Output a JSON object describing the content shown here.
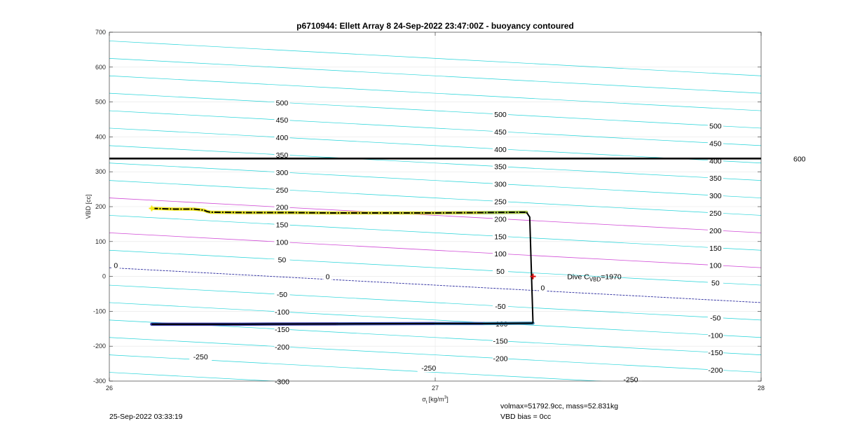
{
  "chart_data": {
    "type": "line",
    "title": "p6710944: Ellett Array 8 24-Sep-2022 23:47:00Z - buoyancy contoured",
    "xlabel_main": "σ",
    "xlabel_sub": "t",
    "xlabel_units_pre": "[kg/m",
    "xlabel_units_sup": "3",
    "xlabel_units_post": "]",
    "ylabel": "VBD [cc]",
    "xlim": [
      26,
      28
    ],
    "ylim": [
      -300,
      700
    ],
    "xticks": [
      26,
      27,
      28
    ],
    "yticks": [
      -300,
      -200,
      -100,
      0,
      100,
      200,
      300,
      400,
      500,
      600,
      700
    ],
    "grid": true,
    "colors": {
      "contour": "#22d3d8",
      "contour_highlight": "#d04ad6",
      "zero_contour": "#2b2b9e",
      "reference_line": "#000000",
      "marker": "#e01010"
    },
    "contours": {
      "spacing_cc": 50,
      "slope_cc_per_sigma": -50,
      "levels": [
        -400,
        -350,
        -300,
        -250,
        -200,
        -150,
        -100,
        -50,
        0,
        50,
        100,
        150,
        200,
        250,
        300,
        350,
        400,
        450,
        500,
        550,
        600,
        650
      ],
      "highlight_levels": [
        100,
        200
      ],
      "zero_level": 0,
      "label_groups": [
        {
          "sigma": 26.53,
          "labels": [
            "500",
            "450",
            "400",
            "350",
            "300",
            "250",
            "200",
            "150",
            "100",
            "50",
            "-50",
            "-100",
            "-150",
            "-200",
            "-300"
          ]
        },
        {
          "sigma": 27.2,
          "labels": [
            "500",
            "450",
            "400",
            "350",
            "300",
            "250",
            "200",
            "150",
            "100",
            "50",
            "-50",
            "-100",
            "-150",
            "-200"
          ]
        },
        {
          "sigma": 27.86,
          "labels": [
            "500",
            "450",
            "400",
            "350",
            "300",
            "250",
            "200",
            "150",
            "100",
            "50",
            "-50",
            "-100",
            "-150",
            "-200"
          ]
        }
      ],
      "extra_labels": [
        {
          "text": "0",
          "sigma": 26.02,
          "vbd": 32
        },
        {
          "text": "0",
          "sigma": 26.67,
          "vbd": 0
        },
        {
          "text": "0",
          "sigma": 27.33,
          "vbd": -32
        },
        {
          "text": "-250",
          "sigma": 26.28,
          "vbd": -230
        },
        {
          "text": "-250",
          "sigma": 26.98,
          "vbd": -262
        },
        {
          "text": "-250",
          "sigma": 27.6,
          "vbd": -295
        }
      ]
    },
    "reference_line": {
      "vbd": 338,
      "label": "600"
    },
    "dive_trace": {
      "name": "dive",
      "sigma": [
        26.13,
        26.2,
        26.26,
        26.29,
        26.3,
        26.31,
        26.42,
        26.55,
        26.68,
        26.85,
        27.0,
        27.15,
        27.28
      ],
      "vbd": [
        195,
        193,
        193,
        190,
        186,
        184,
        183,
        183,
        182,
        182,
        182,
        183,
        184
      ],
      "colors": [
        "#f5ea1a",
        "#f5ea1a",
        "#f0e51c",
        "#ece41f",
        "#e8e321",
        "#e4e022",
        "#dcdc25",
        "#d9d929",
        "#d7d52b",
        "#d0d22f",
        "#c8cf38",
        "#a7c74a",
        "#5fbd68"
      ]
    },
    "climb_trace": {
      "name": "climb",
      "sigma": [
        26.13,
        26.4,
        26.7,
        27.0,
        27.15,
        27.3
      ],
      "vbd": [
        -137,
        -137,
        -136,
        -135,
        -135,
        -134
      ],
      "colors": [
        "#3a3aa8",
        "#3b40b0",
        "#3f52b8",
        "#3f6cbc",
        "#3a8cba",
        "#2ab3a8"
      ]
    },
    "descent_segment": {
      "sigma": [
        27.28,
        27.29,
        27.3
      ],
      "vbd": [
        184,
        170,
        -134
      ]
    },
    "marker": {
      "sigma": 27.3,
      "vbd": 0,
      "symbol": "+"
    },
    "annotation": {
      "text_pre": "Dive C",
      "text_sub": "VBD",
      "text_post": "=1970",
      "sigma": 27.405,
      "vbd": 0
    }
  },
  "footer": {
    "timestamp": "25-Sep-2022 03:33:19",
    "volmax_line": "volmax=51792.9cc, mass=52.831kg",
    "bias_line": "VBD bias = 0cc"
  }
}
